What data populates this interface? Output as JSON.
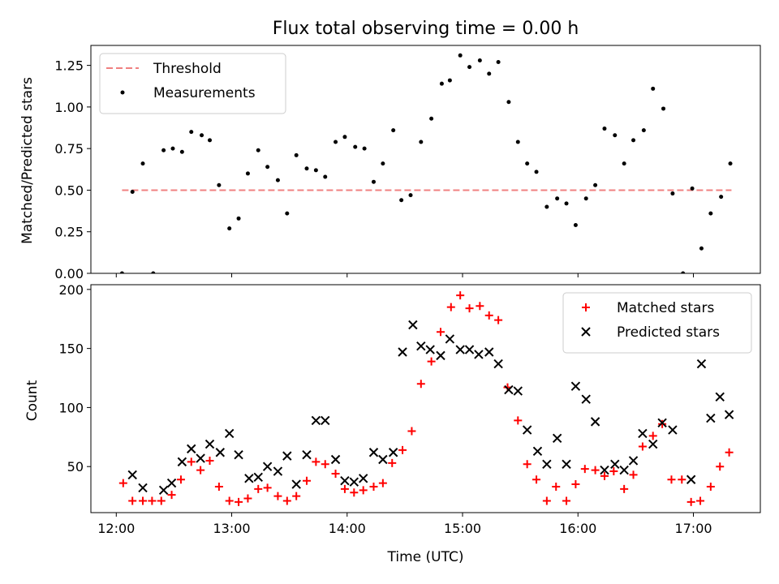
{
  "chart_data": [
    {
      "type": "scatter",
      "title": "Flux total observing time = 0.00 h",
      "xlabel": "",
      "ylabel": "Matched/Predicted stars",
      "xlim": [
        11.78,
        17.58
      ],
      "ylim": [
        0,
        1.37
      ],
      "yticks": [
        0,
        0.25,
        0.5,
        0.75,
        1.0,
        1.25
      ],
      "ytick_labels": [
        "0.00",
        "0.25",
        "0.50",
        "0.75",
        "1.00",
        "1.25"
      ],
      "xticks": [
        12,
        13,
        14,
        15,
        16,
        17
      ],
      "show_xtick_labels": false,
      "legend_position": "top-left",
      "threshold": {
        "name": "Threshold",
        "value": 0.5,
        "x_range": [
          12.05,
          17.33
        ],
        "color": "#f08080"
      },
      "series": [
        {
          "name": "Measurements",
          "color": "#000000",
          "marker": "dot",
          "x": [
            12.05,
            12.14,
            12.23,
            12.32,
            12.41,
            12.49,
            12.57,
            12.65,
            12.74,
            12.81,
            12.89,
            12.98,
            13.06,
            13.14,
            13.23,
            13.31,
            13.4,
            13.48,
            13.56,
            13.65,
            13.73,
            13.81,
            13.9,
            13.98,
            14.07,
            14.15,
            14.23,
            14.31,
            14.4,
            14.47,
            14.55,
            14.64,
            14.73,
            14.82,
            14.89,
            14.98,
            15.06,
            15.15,
            15.23,
            15.31,
            15.4,
            15.48,
            15.56,
            15.64,
            15.73,
            15.82,
            15.9,
            15.98,
            16.07,
            16.15,
            16.23,
            16.32,
            16.4,
            16.48,
            16.57,
            16.65,
            16.74,
            16.82,
            16.91,
            16.99,
            17.07,
            17.15,
            17.24,
            17.32
          ],
          "y": [
            0.0,
            0.49,
            0.66,
            0.0,
            0.74,
            0.75,
            0.73,
            0.85,
            0.83,
            0.8,
            0.53,
            0.27,
            0.33,
            0.6,
            0.74,
            0.64,
            0.56,
            0.36,
            0.71,
            0.63,
            0.62,
            0.58,
            0.79,
            0.82,
            0.76,
            0.75,
            0.55,
            0.66,
            0.86,
            0.44,
            0.47,
            0.79,
            0.93,
            1.14,
            1.16,
            1.31,
            1.24,
            1.28,
            1.2,
            1.27,
            1.03,
            0.79,
            0.66,
            0.61,
            0.4,
            0.45,
            0.42,
            0.29,
            0.45,
            0.53,
            0.87,
            0.83,
            0.66,
            0.8,
            0.86,
            1.11,
            0.99,
            0.48,
            0.0,
            0.51,
            0.15,
            0.36,
            0.46,
            0.66
          ]
        }
      ]
    },
    {
      "type": "scatter",
      "title": "",
      "xlabel": "Time (UTC)",
      "ylabel": "Count",
      "xlim": [
        11.78,
        17.58
      ],
      "ylim": [
        11,
        204
      ],
      "yticks": [
        50,
        100,
        150,
        200
      ],
      "ytick_labels": [
        "50",
        "100",
        "150",
        "200"
      ],
      "xticks": [
        12,
        13,
        14,
        15,
        16,
        17
      ],
      "xtick_labels": [
        "12:00",
        "13:00",
        "14:00",
        "15:00",
        "16:00",
        "17:00"
      ],
      "show_xtick_labels": true,
      "legend_position": "top-right",
      "series": [
        {
          "name": "Matched stars",
          "color": "#ff0000",
          "marker": "plus",
          "x": [
            12.06,
            12.14,
            12.23,
            12.31,
            12.39,
            12.48,
            12.56,
            12.65,
            12.73,
            12.81,
            12.89,
            12.98,
            13.06,
            13.14,
            13.23,
            13.31,
            13.4,
            13.48,
            13.56,
            13.65,
            13.73,
            13.81,
            13.9,
            13.98,
            14.06,
            14.14,
            14.23,
            14.31,
            14.39,
            14.48,
            14.56,
            14.64,
            14.73,
            14.81,
            14.9,
            14.98,
            15.06,
            15.15,
            15.23,
            15.31,
            15.39,
            15.48,
            15.56,
            15.64,
            15.73,
            15.81,
            15.9,
            15.98,
            16.06,
            16.15,
            16.23,
            16.31,
            16.4,
            16.48,
            16.56,
            16.65,
            16.73,
            16.81,
            16.9,
            16.98,
            17.06,
            17.15,
            17.23,
            17.31
          ],
          "y": [
            36,
            21,
            21,
            21,
            21,
            26,
            39,
            54,
            47,
            55,
            33,
            21,
            20,
            23,
            31,
            32,
            25,
            21,
            25,
            38,
            54,
            52,
            44,
            31,
            28,
            30,
            33,
            36,
            53,
            64,
            80,
            120,
            139,
            164,
            185,
            195,
            184,
            186,
            178,
            174,
            117,
            89,
            52,
            39,
            21,
            33,
            21,
            35,
            48,
            47,
            42,
            46,
            31,
            43,
            67,
            76,
            86,
            39,
            39,
            20,
            21,
            33,
            50,
            62
          ]
        },
        {
          "name": "Predicted stars",
          "color": "#000000",
          "marker": "x",
          "x": [
            12.14,
            12.23,
            12.41,
            12.48,
            12.57,
            12.65,
            12.73,
            12.81,
            12.9,
            12.98,
            13.06,
            13.15,
            13.23,
            13.31,
            13.4,
            13.48,
            13.56,
            13.65,
            13.73,
            13.81,
            13.9,
            13.98,
            14.06,
            14.14,
            14.23,
            14.31,
            14.4,
            14.48,
            14.57,
            14.64,
            14.72,
            14.81,
            14.89,
            14.98,
            15.06,
            15.14,
            15.23,
            15.31,
            15.4,
            15.48,
            15.56,
            15.65,
            15.73,
            15.82,
            15.9,
            15.98,
            16.07,
            16.15,
            16.23,
            16.32,
            16.4,
            16.48,
            16.56,
            16.65,
            16.73,
            16.82,
            16.98,
            17.07,
            17.15,
            17.23,
            17.31
          ],
          "y": [
            43,
            32,
            30,
            36,
            54,
            65,
            57,
            69,
            62,
            78,
            60,
            40,
            41,
            50,
            46,
            59,
            35,
            60,
            89,
            89,
            56,
            38,
            37,
            40,
            62,
            56,
            62,
            147,
            170,
            152,
            149,
            144,
            158,
            149,
            149,
            145,
            147,
            137,
            115,
            114,
            81,
            63,
            52,
            74,
            52,
            118,
            107,
            88,
            47,
            52,
            47,
            55,
            78,
            69,
            87,
            81,
            39,
            137,
            91,
            109,
            94
          ]
        }
      ]
    }
  ]
}
